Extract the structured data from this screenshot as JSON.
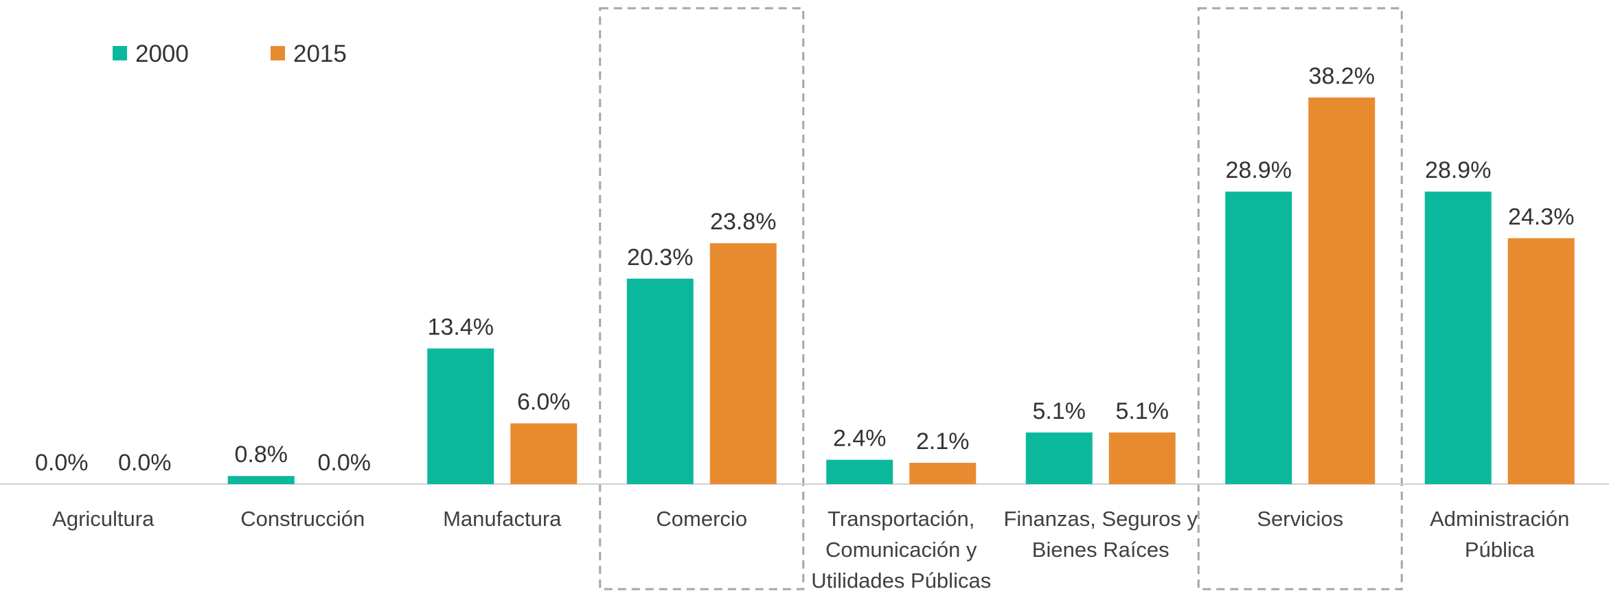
{
  "chart_data": {
    "type": "bar",
    "categories": [
      "Agricultura",
      "Construcción",
      "Manufactura",
      "Comercio",
      "Transportación, Comunicación y Utilidades Públicas",
      "Finanzas, Seguros y Bienes Raíces",
      "Servicios",
      "Administración Pública"
    ],
    "series": [
      {
        "name": "2000",
        "color": "#0cb89c",
        "values": [
          0.0,
          0.8,
          13.4,
          20.3,
          2.4,
          5.1,
          28.9,
          28.9
        ],
        "value_labels": [
          "0.0%",
          "0.8%",
          "13.4%",
          "20.3%",
          "2.4%",
          "5.1%",
          "28.9%",
          "28.9%"
        ]
      },
      {
        "name": "2015",
        "color": "#e88b30",
        "values": [
          0.0,
          0.0,
          6.0,
          23.8,
          2.1,
          5.1,
          38.2,
          24.3
        ],
        "value_labels": [
          "0.0%",
          "0.0%",
          "6.0%",
          "23.8%",
          "2.1%",
          "5.1%",
          "38.2%",
          "24.3%"
        ]
      }
    ],
    "highlighted": [
      3,
      6
    ],
    "legend": "top-left"
  }
}
